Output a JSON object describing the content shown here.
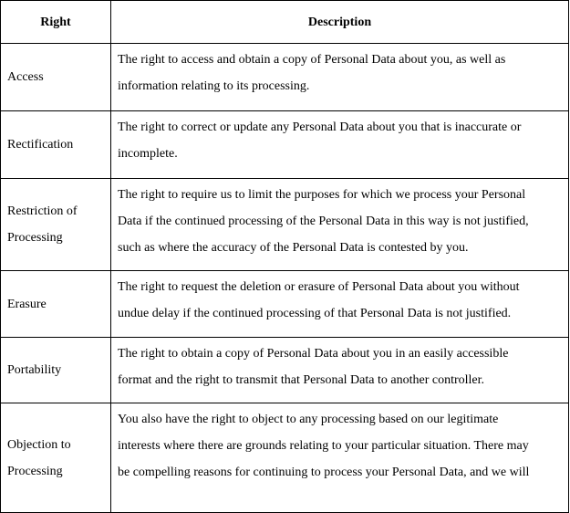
{
  "table": {
    "headers": {
      "right": "Right",
      "description": "Description"
    },
    "rows": [
      {
        "right": [
          "Access"
        ],
        "description": [
          "The right to access and obtain a copy of Personal Data about you, as well as",
          "information relating to its processing."
        ]
      },
      {
        "right": [
          "Rectification"
        ],
        "description": [
          "The right to correct or update any Personal Data about you that is inaccurate or",
          "incomplete."
        ]
      },
      {
        "right": [
          "Restriction of",
          "Processing"
        ],
        "description": [
          "The right to require us to limit the purposes for which we process your Personal",
          "Data if the continued processing of the Personal Data in this way is not justified,",
          "such as where the accuracy of the Personal Data is contested by you."
        ]
      },
      {
        "right": [
          "Erasure"
        ],
        "description": [
          "The right to request the deletion or erasure of Personal Data about you without",
          "undue delay if the continued processing of that Personal Data is not justified."
        ]
      },
      {
        "right": [
          "Portability"
        ],
        "description": [
          "The right to obtain a copy of Personal Data about you in an easily accessible",
          "format and the right to transmit that Personal Data to another controller."
        ]
      },
      {
        "right": [
          "Objection to",
          "Processing"
        ],
        "description": [
          "You also have the right to object to any processing based on our legitimate",
          "interests where there are grounds relating to your particular situation. There may",
          "be compelling reasons for continuing to process your Personal Data, and we will"
        ]
      }
    ]
  }
}
